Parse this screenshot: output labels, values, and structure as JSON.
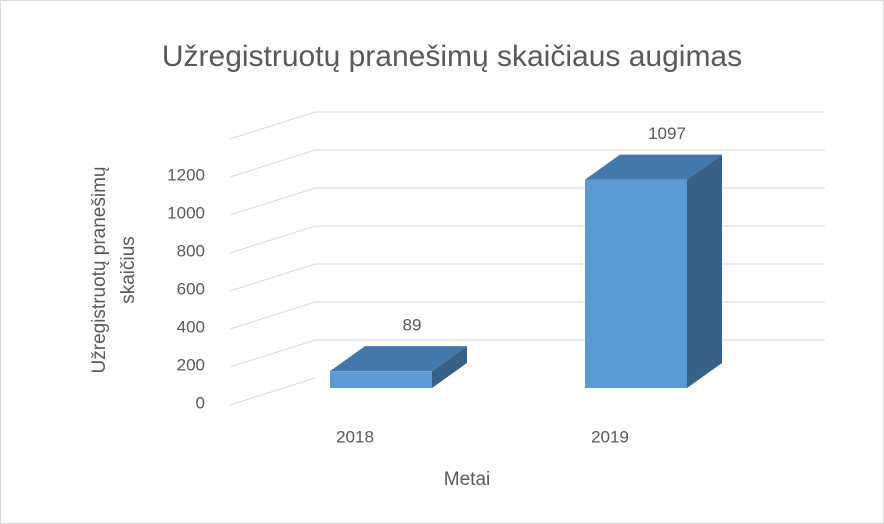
{
  "chart_data": {
    "type": "bar3d",
    "title": "Užregistruotų pranešimų skaičiaus augimas",
    "ylabel": [
      "Užregistruotų pranešimų",
      "skaičius"
    ],
    "xlabel": "Metai",
    "categories": [
      "2018",
      "2019"
    ],
    "values": [
      89,
      1097
    ],
    "color": "#5b9bd5",
    "ylim": [
      0,
      1400
    ],
    "yticks": [
      0,
      200,
      400,
      600,
      800,
      1000,
      1200
    ],
    "grid": true
  }
}
